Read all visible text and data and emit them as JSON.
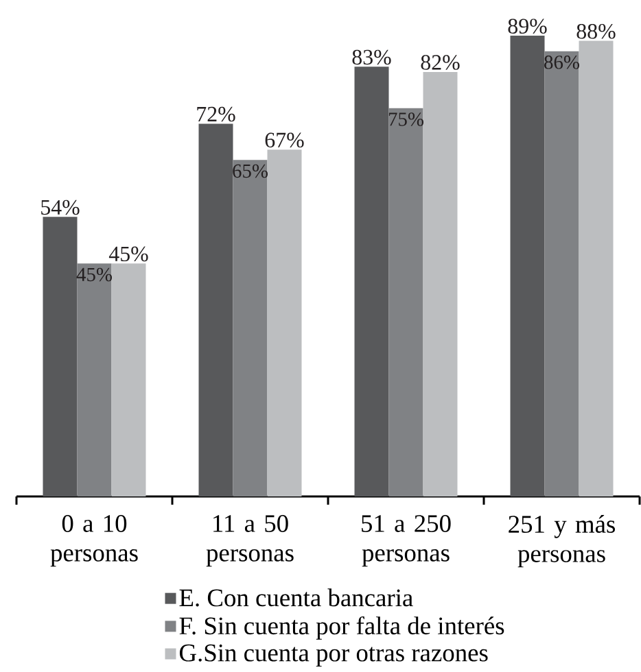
{
  "chart_data": {
    "type": "bar",
    "categories": [
      "0 a 10 personas",
      "11 a 50 personas",
      "51 a 250 personas",
      "251 y más personas"
    ],
    "series": [
      {
        "name": "E. Con cuenta bancaria",
        "color": "#58595b",
        "values": [
          54,
          72,
          83,
          89
        ],
        "value_labels": [
          "54%",
          "72%",
          "83%",
          "89%"
        ]
      },
      {
        "name": "F. Sin cuenta por falta de interés",
        "color": "#808285",
        "values": [
          45,
          65,
          75,
          86
        ],
        "value_labels": [
          "45%",
          "65%",
          "75%",
          "86%"
        ]
      },
      {
        "name": "G.Sin cuenta por otras razones",
        "color": "#bcbec0",
        "values": [
          45,
          67,
          82,
          88
        ],
        "value_labels": [
          "45%",
          "67%",
          "82%",
          "88%"
        ]
      }
    ],
    "legend": "bottom"
  }
}
